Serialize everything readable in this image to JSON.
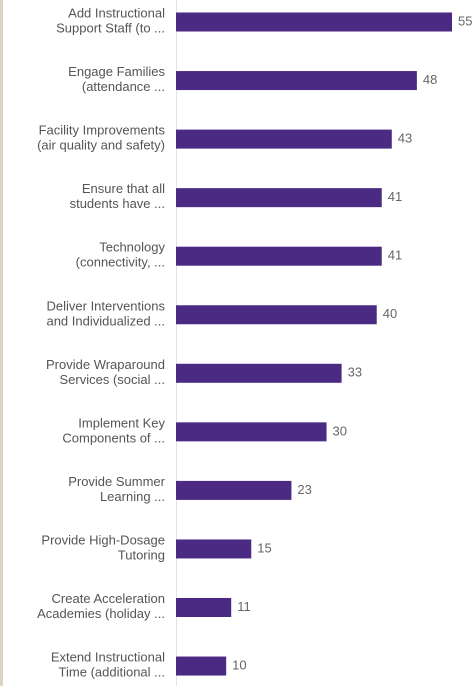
{
  "chart_data": {
    "type": "bar",
    "orientation": "horizontal",
    "color": "#4a2a83",
    "categories": [
      [
        "Add Instructional",
        "Support Staff (to ..."
      ],
      [
        "Engage Families",
        "(attendance ..."
      ],
      [
        "Facility Improvements",
        "(air quality and safety)"
      ],
      [
        "Ensure that all",
        "students have ..."
      ],
      [
        "Technology",
        "(connectivity, ..."
      ],
      [
        "Deliver Interventions",
        "and Individualized ..."
      ],
      [
        "Provide Wraparound",
        "Services (social ..."
      ],
      [
        "Implement Key",
        "Components of ..."
      ],
      [
        "Provide Summer",
        "Learning ..."
      ],
      [
        "Provide High-Dosage",
        "Tutoring"
      ],
      [
        "Create Acceleration",
        "Academies (holiday ..."
      ],
      [
        "Extend Instructional",
        "Time (additional ..."
      ]
    ],
    "values": [
      55,
      48,
      43,
      41,
      41,
      40,
      33,
      30,
      23,
      15,
      11,
      10
    ]
  }
}
